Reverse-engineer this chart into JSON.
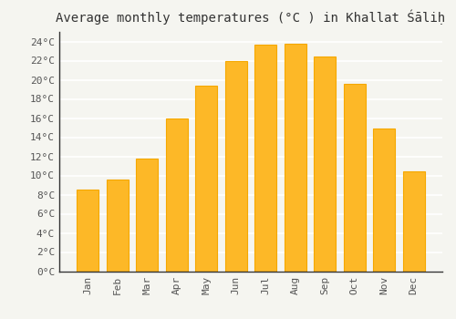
{
  "title": "Average monthly temperatures (°C ) in Khallat Śāliḥ",
  "months": [
    "Jan",
    "Feb",
    "Mar",
    "Apr",
    "May",
    "Jun",
    "Jul",
    "Aug",
    "Sep",
    "Oct",
    "Nov",
    "Dec"
  ],
  "values": [
    8.5,
    9.6,
    11.8,
    16.0,
    19.4,
    22.0,
    23.7,
    23.8,
    22.4,
    19.6,
    14.9,
    10.4
  ],
  "bar_color": "#FDB827",
  "bar_edge_color": "#F5A800",
  "background_color": "#F5F5F0",
  "grid_color": "#FFFFFF",
  "ylim": [
    0,
    25
  ],
  "yticks": [
    0,
    2,
    4,
    6,
    8,
    10,
    12,
    14,
    16,
    18,
    20,
    22,
    24
  ],
  "title_fontsize": 10,
  "tick_fontsize": 8,
  "font_family": "monospace",
  "bar_width": 0.75
}
